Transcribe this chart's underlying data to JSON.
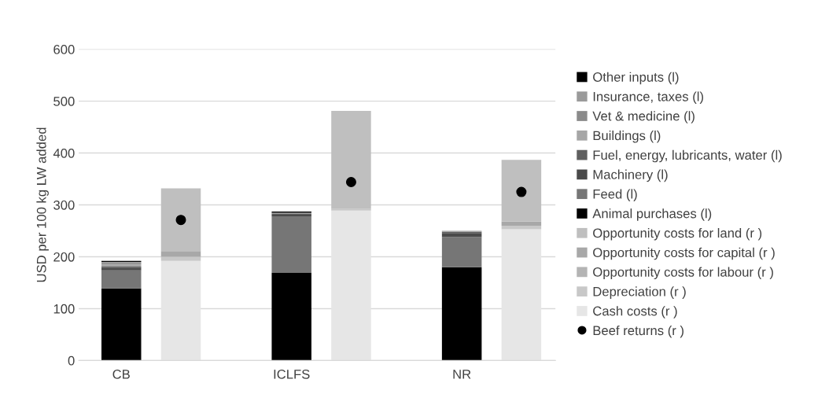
{
  "chart_data": {
    "type": "bar",
    "stacked": true,
    "ylabel": "USD per 100 kg LW added",
    "categories": [
      "CB",
      null,
      "ICLFS",
      null,
      "NR",
      null
    ],
    "ylim": [
      0,
      600
    ],
    "yticks": [
      0,
      100,
      200,
      300,
      400,
      500,
      600
    ],
    "grid": "y",
    "legend": "right",
    "series": [
      {
        "name": "Cash costs (r )",
        "color": "#e6e6e6",
        "values": [
          null,
          192,
          null,
          289,
          null,
          253
        ]
      },
      {
        "name": "Depreciation (r )",
        "color": "#c8c8c8",
        "values": [
          null,
          8,
          null,
          3,
          null,
          7
        ]
      },
      {
        "name": "Opportunity costs for labour (r )",
        "color": "#b4b4b4",
        "values": [
          null,
          0,
          null,
          0,
          null,
          0
        ]
      },
      {
        "name": "Opportunity costs for capital (r )",
        "color": "#a8a8a8",
        "values": [
          null,
          11,
          null,
          0,
          null,
          8
        ]
      },
      {
        "name": "Opportunity costs for land (r )",
        "color": "#bfbfbf",
        "values": [
          null,
          121,
          null,
          189,
          null,
          119
        ]
      },
      {
        "name": "Animal purchases (l)",
        "color": "#000000",
        "values": [
          139,
          null,
          169,
          null,
          180,
          null
        ]
      },
      {
        "name": "Feed (l)",
        "color": "#767676",
        "values": [
          35,
          null,
          109,
          null,
          58,
          null
        ]
      },
      {
        "name": "Machinery (l)",
        "color": "#4a4a4a",
        "values": [
          5,
          null,
          3,
          null,
          8,
          null
        ]
      },
      {
        "name": "Fuel, energy, lubricants, water (l)",
        "color": "#5f5f5f",
        "values": [
          2,
          null,
          2,
          null,
          2,
          null
        ]
      },
      {
        "name": "Buildings (l)",
        "color": "#a6a6a6",
        "values": [
          5,
          null,
          null,
          null,
          null,
          null
        ]
      },
      {
        "name": "Vet & medicine (l)",
        "color": "#8a8a8a",
        "values": [
          3,
          null,
          1,
          null,
          1,
          null
        ]
      },
      {
        "name": "Insurance, taxes (l)",
        "color": "#9a9a9a",
        "values": [
          1,
          null,
          1,
          null,
          1,
          null
        ]
      },
      {
        "name": "Other inputs (l)",
        "color": "#000000",
        "values": [
          2,
          null,
          2,
          null,
          null,
          null
        ]
      },
      {
        "name": "Beef returns (r )",
        "type": "scatter",
        "marker": "circle",
        "color": "#000000",
        "values": [
          null,
          271,
          null,
          344,
          null,
          325
        ]
      }
    ]
  }
}
